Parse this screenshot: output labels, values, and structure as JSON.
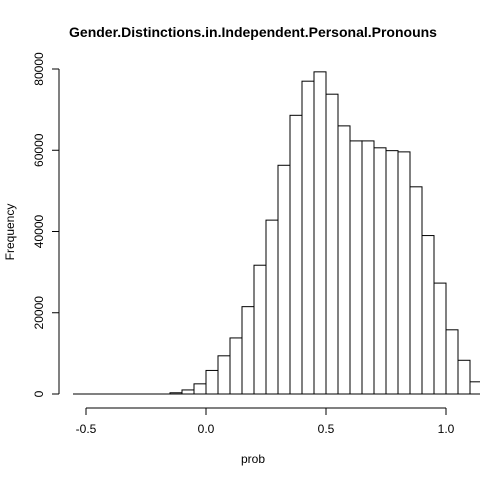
{
  "chart_data": {
    "type": "bar",
    "title": "Gender.Distinctions.in.Independent.Personal.Pronouns",
    "xlabel": "prob",
    "ylabel": "Frequency",
    "bin_width": 0.05,
    "bin_start": -0.5,
    "x_ticks": [
      -0.5,
      0.0,
      0.5,
      1.0
    ],
    "x_tick_labels": [
      "-0.5",
      "0.0",
      "0.5",
      "1.0"
    ],
    "y_ticks": [
      0,
      20000,
      40000,
      60000,
      80000
    ],
    "y_tick_labels": [
      "0",
      "20000",
      "40000",
      "60000",
      "80000"
    ],
    "xlim": [
      -0.55,
      1.0
    ],
    "ylim": [
      0,
      80000
    ],
    "values": [
      0,
      0,
      0,
      0,
      0,
      0,
      0,
      300,
      1000,
      2500,
      5800,
      9400,
      13800,
      21500,
      31700,
      42800,
      56300,
      68600,
      77000,
      79300,
      73800,
      66000,
      62300,
      62300,
      60600,
      59900,
      59600,
      51000,
      39000,
      27300,
      15800,
      8300,
      3000,
      600,
      100,
      0,
      0,
      0,
      0
    ]
  }
}
